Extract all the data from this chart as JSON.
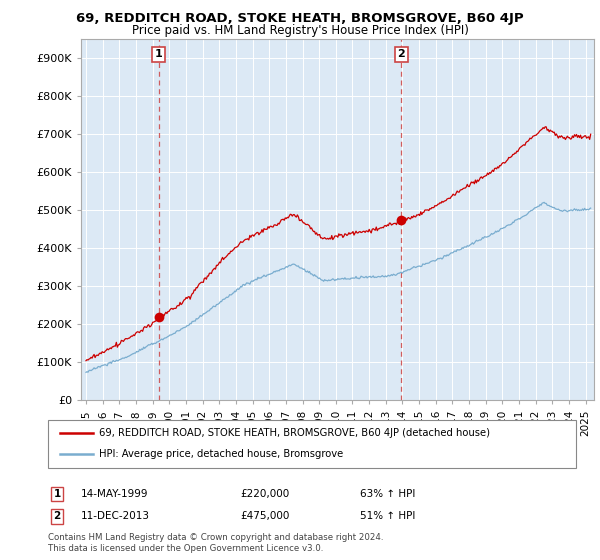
{
  "title1": "69, REDDITCH ROAD, STOKE HEATH, BROMSGROVE, B60 4JP",
  "title2": "Price paid vs. HM Land Registry's House Price Index (HPI)",
  "ylabel_ticks": [
    "£0",
    "£100K",
    "£200K",
    "£300K",
    "£400K",
    "£500K",
    "£600K",
    "£700K",
    "£800K",
    "£900K"
  ],
  "ytick_vals": [
    0,
    100000,
    200000,
    300000,
    400000,
    500000,
    600000,
    700000,
    800000,
    900000
  ],
  "ylim": [
    0,
    950000
  ],
  "xlim_start": 1994.7,
  "xlim_end": 2025.5,
  "legend_line1": "69, REDDITCH ROAD, STOKE HEATH, BROMSGROVE, B60 4JP (detached house)",
  "legend_line2": "HPI: Average price, detached house, Bromsgrove",
  "marker1_label": "1",
  "marker1_date": "14-MAY-1999",
  "marker1_price": "£220,000",
  "marker1_pct": "63% ↑ HPI",
  "marker1_year": 1999.37,
  "marker1_value": 220000,
  "marker2_label": "2",
  "marker2_date": "11-DEC-2013",
  "marker2_price": "£475,000",
  "marker2_pct": "51% ↑ HPI",
  "marker2_year": 2013.94,
  "marker2_value": 475000,
  "red_color": "#cc0000",
  "blue_color": "#7aadcf",
  "dashed_red": "#cc4444",
  "bg_color": "#dce9f5",
  "footnote": "Contains HM Land Registry data © Crown copyright and database right 2024.\nThis data is licensed under the Open Government Licence v3.0."
}
